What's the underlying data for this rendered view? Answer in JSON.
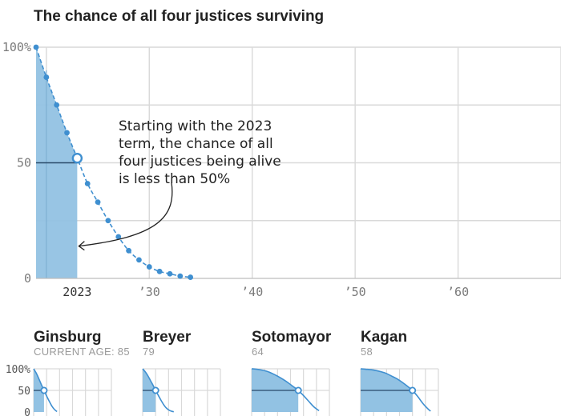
{
  "chart_data": [
    {
      "type": "area",
      "title": "The chance of all four justices surviving",
      "xlabel": "",
      "ylabel": "",
      "xlim": [
        2019,
        2070
      ],
      "ylim": [
        0,
        100
      ],
      "y_ticks": [
        0,
        50,
        100
      ],
      "y_tick_labels": [
        "0",
        "50",
        "100%"
      ],
      "x_ticks": [
        2023,
        2030,
        2040,
        2050,
        2060
      ],
      "x_tick_labels": [
        "2023",
        "’30",
        "’40",
        "’50",
        "’60"
      ],
      "grid": true,
      "shaded_until": 2023,
      "reference_line": 50,
      "highlight_x": 2023,
      "series": [
        {
          "x": [
            2019,
            2020,
            2021,
            2022,
            2023,
            2024,
            2025,
            2026,
            2027,
            2028,
            2029,
            2030,
            2031,
            2032,
            2033,
            2034
          ],
          "y": [
            100,
            87,
            75,
            63,
            52,
            41,
            33,
            25,
            18,
            12,
            8,
            5,
            3,
            2,
            1,
            0.5
          ]
        }
      ],
      "annotation": {
        "text_lines": [
          "Starting with the 2023",
          "term, the chance of all",
          "four justices being alive",
          "is less than 50%"
        ]
      }
    },
    {
      "type": "area",
      "title": "Ginsburg",
      "subtitle": "CURRENT AGE: 85",
      "y_tick_labels": [
        "0",
        "50",
        "100%"
      ],
      "ylim": [
        0,
        100
      ],
      "xlim": [
        0,
        30
      ],
      "marker_x": 4,
      "values_x": [
        0,
        1,
        2,
        3,
        4,
        5,
        6,
        7,
        8,
        9
      ],
      "values_y": [
        100,
        90,
        77,
        63,
        50,
        37,
        25,
        14,
        6,
        1
      ]
    },
    {
      "type": "area",
      "title": "Breyer",
      "subtitle": "79",
      "ylim": [
        0,
        100
      ],
      "xlim": [
        0,
        30
      ],
      "marker_x": 5,
      "values_x": [
        0,
        1,
        2,
        3,
        4,
        5,
        6,
        7,
        8,
        9,
        10,
        11,
        12
      ],
      "values_y": [
        100,
        93,
        84,
        73,
        62,
        50,
        39,
        28,
        18,
        10,
        5,
        2,
        0.5
      ]
    },
    {
      "type": "area",
      "title": "Sotomayor",
      "subtitle": "64",
      "ylim": [
        0,
        100
      ],
      "xlim": [
        0,
        30
      ],
      "marker_x": 18,
      "values_x": [
        0,
        2,
        4,
        6,
        8,
        10,
        12,
        14,
        16,
        18,
        20,
        22,
        24,
        26
      ],
      "values_y": [
        100,
        99,
        97,
        94,
        89,
        83,
        76,
        68,
        59,
        50,
        38,
        25,
        12,
        3
      ]
    },
    {
      "type": "area",
      "title": "Kagan",
      "subtitle": "58",
      "ylim": [
        0,
        100
      ],
      "xlim": [
        0,
        30
      ],
      "marker_x": 20,
      "values_x": [
        0,
        2,
        4,
        6,
        8,
        10,
        12,
        14,
        16,
        18,
        20,
        22,
        24,
        26,
        27
      ],
      "values_y": [
        100,
        99,
        98,
        96,
        93,
        89,
        83,
        77,
        69,
        60,
        50,
        36,
        20,
        7,
        2
      ]
    }
  ],
  "colors": {
    "fill": "#92c2e3",
    "line": "#3f8fd0",
    "grid": "#d9d9d9",
    "reference": "#2a4a6a"
  }
}
